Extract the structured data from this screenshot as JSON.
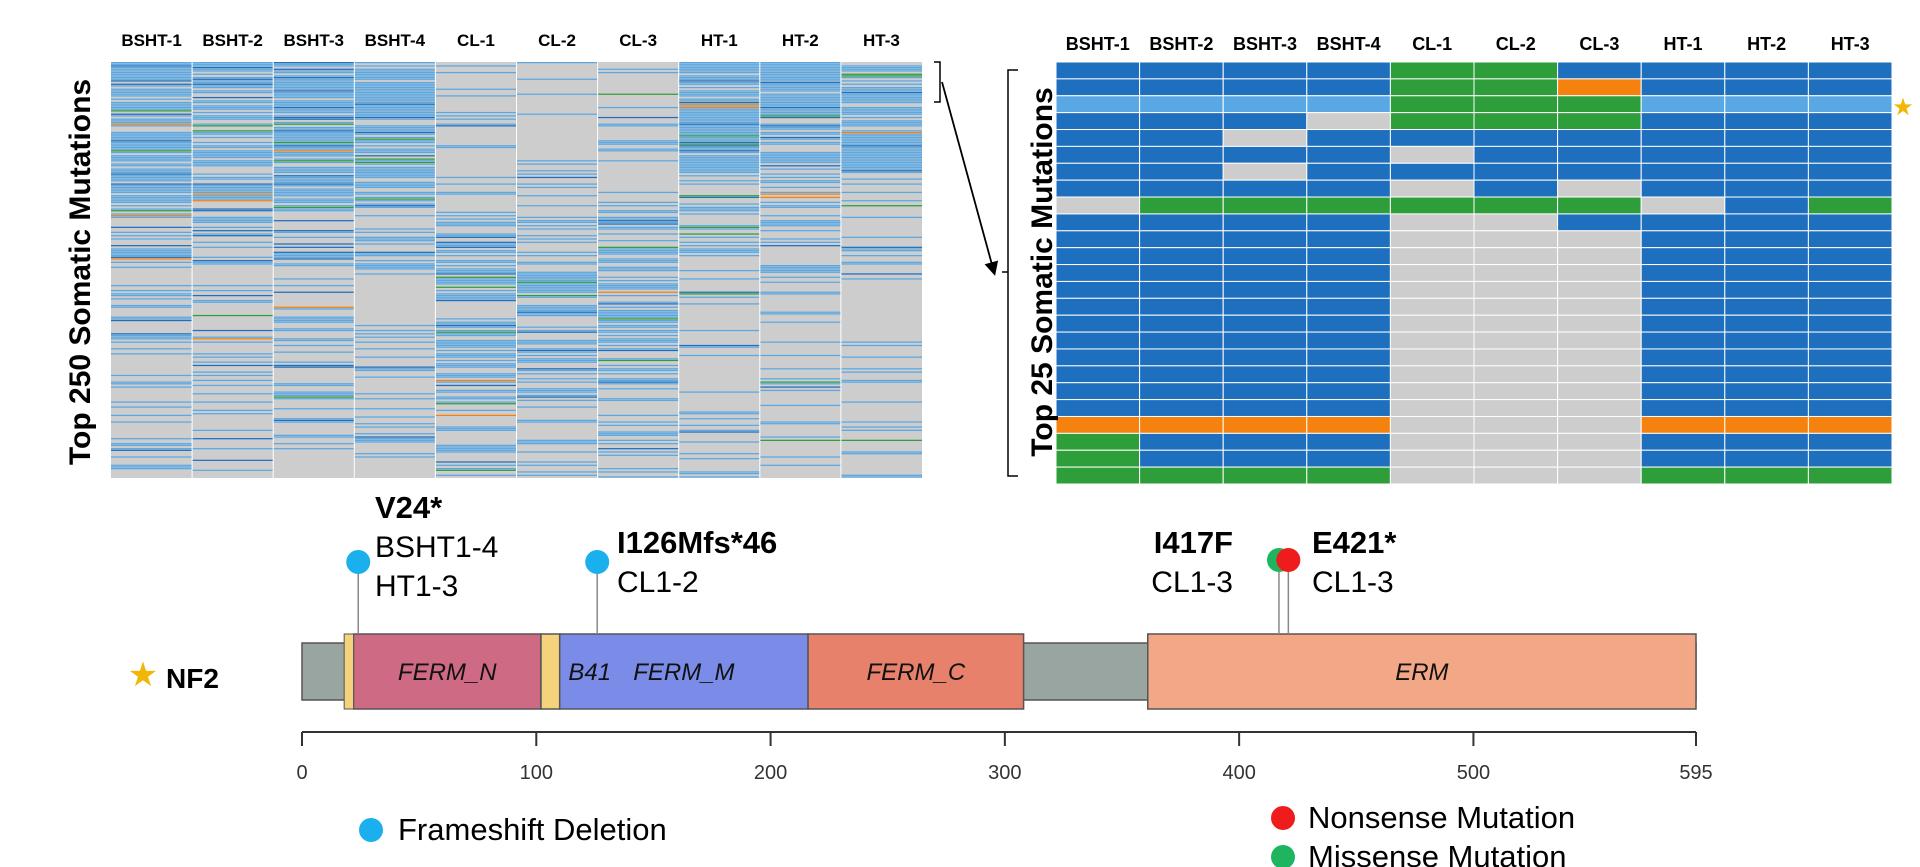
{
  "colors": {
    "wildtype": "#cdcdcd",
    "frameshift": "#1f6fbf",
    "frameshift_light": "#5aa8e3",
    "missense": "#2e9e3a",
    "nonsense": "#f5820f",
    "lollipop_frameshift": "#1ab0ee",
    "lollipop_nonsense": "#ee1c1c",
    "lollipop_missense": "#1fb560",
    "star": "#f2b705",
    "domain_ferm_n": "#cf6a84",
    "domain_b41": "#f5d27c",
    "domain_ferm_m": "#7b8ce8",
    "domain_ferm_c": "#e7816c",
    "domain_erm": "#f2a886",
    "backbone": "#98a5a0"
  },
  "samples": [
    "BSHT-1",
    "BSHT-2",
    "BSHT-3",
    "BSHT-4",
    "CL-1",
    "CL-2",
    "CL-3",
    "HT-1",
    "HT-2",
    "HT-3"
  ],
  "left_heatmap": {
    "ylabel": "Top 250 Somatic Mutations",
    "rows": 250
  },
  "right_heatmap": {
    "ylabel": "Top 25 Somatic Mutations",
    "legend_codes": {
      "W": "wildtype",
      "F": "frameshift",
      "M": "missense",
      "N": "nonsense",
      "L": "frameshift_light"
    },
    "rows": [
      "FFFFMMFFFF",
      "FFFFMMNFFF",
      "LLLLMMMLLL",
      "FFFWMMMFFF",
      "FFWFFFFFFF",
      "FFFFWFFFFF",
      "FFWFFFFFFF",
      "FFFFWFWFFF",
      "WMMMMMMWFM",
      "FFFFWWFFFF",
      "FFFFWWWFFF",
      "FFFFWWWFFF",
      "FFFFWWWFFF",
      "FFFFWWWFFF",
      "FFFFWWWFFF",
      "FFFFWWWFFF",
      "FFFFWWWFFF",
      "FFFFWWWFFF",
      "FFFFWWWFFF",
      "FFFFWWWFFF",
      "FFFFWWWFFF",
      "NNNNWWWNNN",
      "MFFFWWWFFF",
      "MFFFWWWFFF",
      "MMMMWWWMMM"
    ]
  },
  "chart_data": {
    "type": "lollipop",
    "gene": "NF2",
    "protein_length": 595,
    "x_ticks": [
      0,
      100,
      200,
      300,
      400,
      500,
      595
    ],
    "domains": [
      {
        "name": "FERM_N",
        "start": 22,
        "end": 102
      },
      {
        "name": "B41",
        "start": 102,
        "end": 110
      },
      {
        "name": "FERM_M",
        "start": 110,
        "end": 216
      },
      {
        "name": "FERM_C",
        "start": 216,
        "end": 308
      },
      {
        "name": "ERM",
        "start": 361,
        "end": 595
      }
    ],
    "mutations": [
      {
        "label": "V24*",
        "position": 24,
        "type": "Frameshift Deletion",
        "samples": [
          "BSHT1-4",
          "HT1-3"
        ]
      },
      {
        "label": "I126Mfs*46",
        "position": 126,
        "type": "Frameshift Deletion",
        "samples": [
          "CL1-2"
        ]
      },
      {
        "label": "I417F",
        "position": 417,
        "type": "Missense Mutation",
        "samples": [
          "CL1-3"
        ]
      },
      {
        "label": "E421*",
        "position": 421,
        "type": "Nonsense Mutation",
        "samples": [
          "CL1-3"
        ]
      }
    ],
    "legend": [
      "Frameshift Deletion",
      "Nonsense Mutation",
      "Missense Mutation"
    ]
  }
}
